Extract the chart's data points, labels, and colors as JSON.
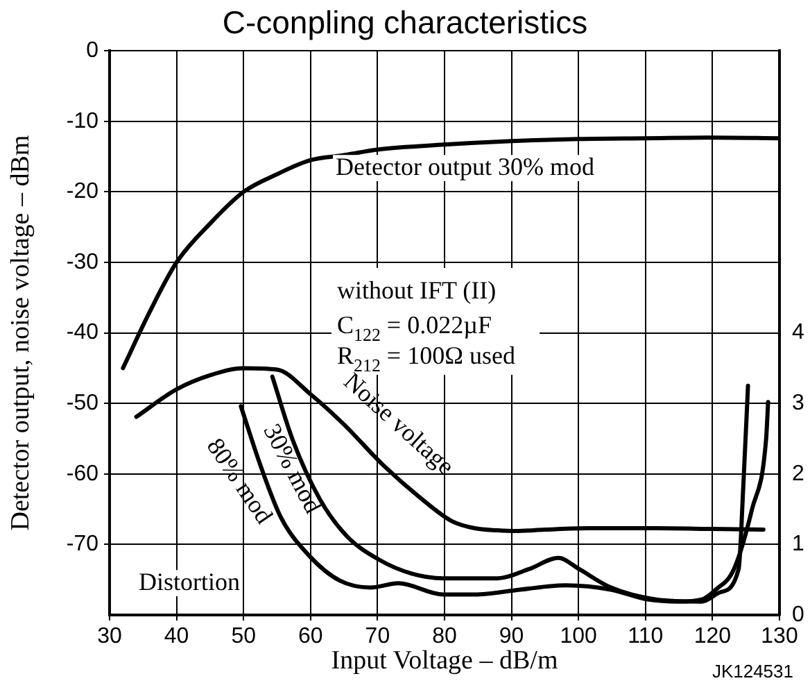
{
  "chart_data": {
    "type": "line",
    "title": "C-conpling characteristics",
    "xlabel": "Input Voltage – dB/m",
    "ylabel": "Detector output, noise voltage – dBm",
    "xlim": [
      30,
      130
    ],
    "xticks": [
      30,
      40,
      50,
      60,
      70,
      80,
      90,
      100,
      110,
      120,
      130
    ],
    "ylim": [
      -80,
      0
    ],
    "yticks": [
      -70,
      -60,
      -50,
      -40,
      -30,
      -20,
      -10,
      0
    ],
    "y2lim": [
      0,
      8
    ],
    "y2ticks": [
      0,
      1,
      2,
      3,
      4
    ],
    "grid": true,
    "legend": false,
    "marker": "none",
    "line_style": "solid",
    "series": [
      {
        "name": "Detector output 30% mod",
        "color": "#000000",
        "x": [
          32,
          36,
          40,
          45,
          50,
          55,
          60,
          65,
          70,
          80,
          90,
          100,
          110,
          120,
          130
        ],
        "values": [
          -45,
          -37,
          -30,
          -24.5,
          -20,
          -17.5,
          -15.5,
          -14.8,
          -14,
          -13.3,
          -12.8,
          -12.5,
          -12.4,
          -12.3,
          -12.4
        ]
      },
      {
        "name": "Noise voltage",
        "color": "#000000",
        "x": [
          34,
          40,
          45,
          50,
          55,
          60,
          65,
          70.9,
          76.4,
          81.1,
          84.5,
          87.9,
          90.6,
          95,
          101.5,
          111.7,
          120,
          127.6
        ],
        "values": [
          -51.9,
          -48,
          -46,
          -45,
          -45.2,
          -48.7,
          -53,
          -58.8,
          -63.4,
          -66.7,
          -67.7,
          -68,
          -68.1,
          -67.9,
          -67.7,
          -67.7,
          -67.8,
          -67.9
        ]
      },
      {
        "name": "30% mod",
        "color": "#000000",
        "axis": "y2",
        "x": [
          54.3,
          57.3,
          61.4,
          65.5,
          70.3,
          75,
          79.8,
          87.9,
          92.6,
          97,
          100.1,
          104.8,
          111.6,
          118.4,
          121.1,
          123.9,
          124.6,
          125.3
        ],
        "values": [
          3.38,
          2.49,
          1.64,
          1.11,
          0.78,
          0.59,
          0.52,
          0.52,
          0.65,
          0.81,
          0.65,
          0.39,
          0.22,
          0.19,
          0.32,
          0.65,
          1.83,
          3.25
        ]
      },
      {
        "name": "80% mod",
        "color": "#000000",
        "axis": "y2",
        "x": [
          49.6,
          52.6,
          55.6,
          59.7,
          64.3,
          69,
          73.1,
          79.8,
          84.5,
          91.3,
          98.1,
          104.8,
          110.3,
          115,
          118.4,
          120.5,
          123.2,
          125.9,
          128,
          128.3
        ],
        "values": [
          2.96,
          2.1,
          1.38,
          0.85,
          0.49,
          0.39,
          0.45,
          0.29,
          0.29,
          0.36,
          0.42,
          0.36,
          0.22,
          0.19,
          0.22,
          0.36,
          0.65,
          1.5,
          2.49,
          3.02
        ]
      }
    ],
    "annotations": [
      "without IFT (II)",
      "C$_{122}$ = 0.022µF",
      "R$_{212}$ = 100Ω used",
      "Distortion",
      "JK124531"
    ]
  }
}
